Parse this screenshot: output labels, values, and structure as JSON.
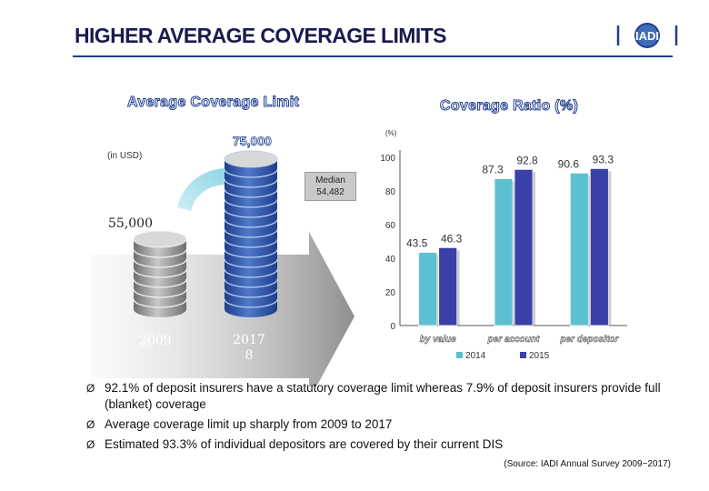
{
  "slide": {
    "title": "HIGHER AVERAGE COVERAGE LIMITS",
    "logo_text": "IADI"
  },
  "limit_panel": {
    "heading": "Average Coverage Limit",
    "unit": "(in USD)",
    "value_2009": "55,000",
    "value_2017": "75,000",
    "year_2009": "2009",
    "year_2017": "2017\n8",
    "median": "Median\n54,482"
  },
  "ratio_panel": {
    "heading": "Coverage Ratio (%)"
  },
  "chart_data": {
    "type": "bar",
    "title": "Coverage Ratio (%)",
    "ylabel": "(%)",
    "categories": [
      "by value",
      "per account",
      "per depositor"
    ],
    "series": [
      {
        "name": "2014",
        "values": [
          43.5,
          87.3,
          90.6
        ],
        "labels": [
          "43.5",
          "87.3",
          "90.6"
        ]
      },
      {
        "name": "2015",
        "values": [
          46.3,
          92.8,
          93.3
        ],
        "labels": [
          "46.3",
          "92.8",
          "93.3"
        ]
      }
    ],
    "yticks": [
      "0",
      "20",
      "40",
      "60",
      "80",
      "100"
    ],
    "ylim": [
      0,
      100
    ],
    "grid": false,
    "legend": "bottom",
    "colors": {
      "2014": "#5bc0cf",
      "2015": "#3b3fa8"
    }
  },
  "bullets": [
    "92.1% of deposit insurers have a statutory coverage limit whereas 7.9% of deposit insurers provide full (blanket) coverage",
    "Average coverage limit up sharply from 2009 to 2017",
    "Estimated 93.3% of individual depositors are covered by their current DIS"
  ],
  "bullet_mark": "Ø",
  "source": "(Source: IADI Annual Survey 2009~2017)",
  "colors": {
    "title": "#1a1a4e",
    "accent": "#1f3e8c",
    "coin_blue": "#2d57a6",
    "coin_grey": "#9a9a9a"
  }
}
